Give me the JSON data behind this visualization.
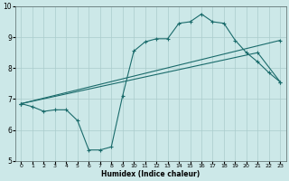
{
  "xlabel": "Humidex (Indice chaleur)",
  "ylabel": "",
  "xlim": [
    -0.5,
    23.5
  ],
  "ylim": [
    5,
    10
  ],
  "xticks": [
    0,
    1,
    2,
    3,
    4,
    5,
    6,
    7,
    8,
    9,
    10,
    11,
    12,
    13,
    14,
    15,
    16,
    17,
    18,
    19,
    20,
    21,
    22,
    23
  ],
  "yticks": [
    5,
    6,
    7,
    8,
    9,
    10
  ],
  "bg_color": "#cce8e8",
  "grid_color": "#aacccc",
  "line_color": "#1a6b6b",
  "line1_x": [
    0,
    1,
    2,
    3,
    4,
    5,
    6,
    7,
    8,
    9,
    10,
    11,
    12,
    13,
    14,
    15,
    16,
    17,
    18,
    19,
    20,
    21,
    22,
    23
  ],
  "line1_y": [
    6.85,
    6.75,
    6.6,
    6.65,
    6.65,
    6.3,
    5.35,
    5.35,
    5.45,
    7.1,
    8.55,
    8.85,
    8.95,
    8.95,
    9.45,
    9.5,
    9.75,
    9.5,
    9.45,
    8.9,
    8.5,
    8.2,
    7.85,
    7.55
  ],
  "line2_x": [
    0,
    23
  ],
  "line2_y": [
    6.85,
    8.9
  ],
  "line3_x": [
    0,
    21,
    23
  ],
  "line3_y": [
    6.85,
    8.5,
    7.55
  ],
  "figsize": [
    3.2,
    2.0
  ],
  "dpi": 100
}
